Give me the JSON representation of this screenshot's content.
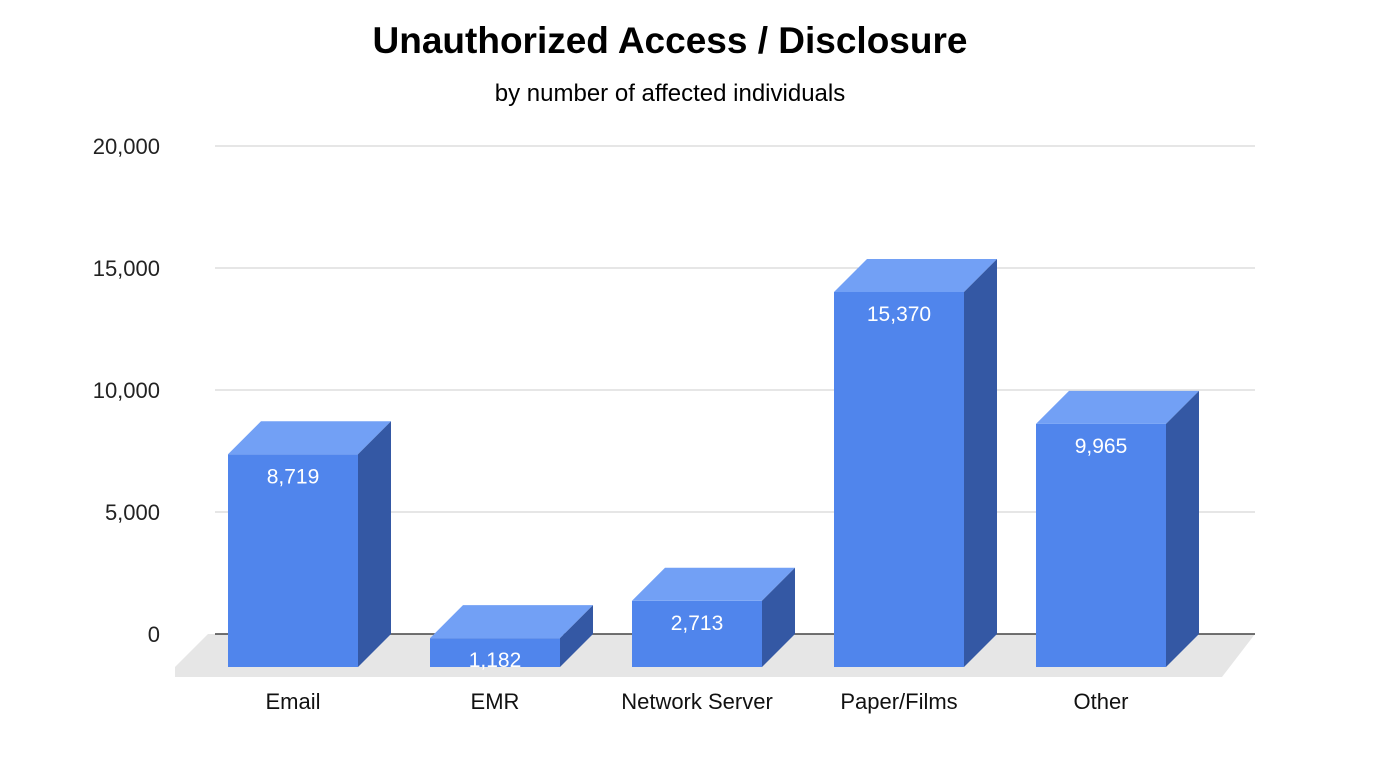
{
  "chart_data": {
    "type": "bar",
    "title": "Unauthorized Access / Disclosure",
    "subtitle": "by number of affected individuals",
    "categories": [
      "Email",
      "EMR",
      "Network Server",
      "Paper/Films",
      "Other"
    ],
    "values": [
      8719,
      1182,
      2713,
      15370,
      9965
    ],
    "data_labels": [
      "8,719",
      "1,182",
      "2,713",
      "15,370",
      "9,965"
    ],
    "y_ticks": [
      0,
      5000,
      10000,
      15000,
      20000
    ],
    "y_tick_labels": [
      "0",
      "5,000",
      "10,000",
      "15,000",
      "20,000"
    ],
    "ylim": [
      0,
      20000
    ],
    "xlabel": "",
    "ylabel": "",
    "grid": true,
    "style": "3d-bar",
    "colors": {
      "bar_front": "#5085EC",
      "bar_top": "#72A0F5",
      "bar_side": "#3458A4",
      "floor": "#E6E6E6",
      "grid": "#CCCCCC",
      "baseline": "#444444"
    }
  }
}
